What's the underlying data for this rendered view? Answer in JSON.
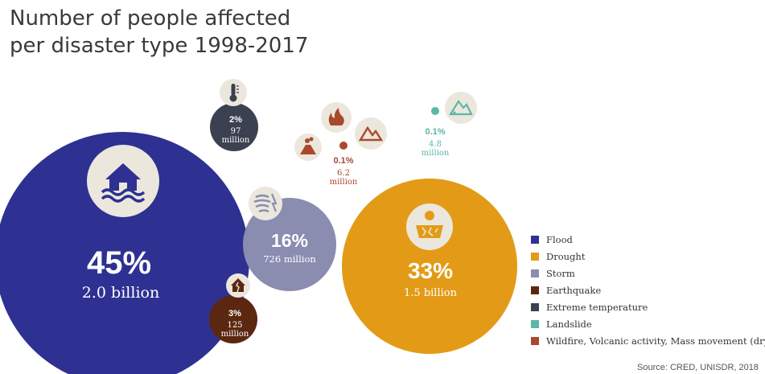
{
  "title_line1": "Number of people affected",
  "title_line2": "per disaster type 1998-2017",
  "source": "Source: CRED, UNISDR, 2018",
  "colors": {
    "flood": "#2e3192",
    "drought": "#e39b17",
    "storm": "#8a8cb0",
    "earthquake": "#5c2710",
    "extreme_temperature": "#3b4150",
    "landslide": "#5bb7a7",
    "wildfire_volcanic_mass": "#a9492b",
    "icon_bg": "#ece7dd"
  },
  "chart_data": {
    "type": "bubble",
    "title": "Number of people affected per disaster type 1998-2017",
    "items": [
      {
        "key": "flood",
        "name": "Flood",
        "percent": 45,
        "percent_label": "45%",
        "people_label": "2.0 billion",
        "people_billions": 2.0,
        "icon": "flood-house-icon"
      },
      {
        "key": "drought",
        "name": "Drought",
        "percent": 33,
        "percent_label": "33%",
        "people_label": "1.5 billion",
        "people_billions": 1.5,
        "icon": "drought-cracked-ground-icon"
      },
      {
        "key": "storm",
        "name": "Storm",
        "percent": 16,
        "percent_label": "16%",
        "people_label": "726 million",
        "people_billions": 0.726,
        "icon": "storm-wind-icon"
      },
      {
        "key": "earthquake",
        "name": "Earthquake",
        "percent": 3,
        "percent_label": "3%",
        "people_label_line1": "125",
        "people_label_line2": "million",
        "people_billions": 0.125,
        "icon": "earthquake-house-icon"
      },
      {
        "key": "extreme_temperature",
        "name": "Extreme temperature",
        "percent": 2,
        "percent_label": "2%",
        "people_label_line1": "97",
        "people_label_line2": "million",
        "people_billions": 0.097,
        "icon": "thermometer-icon"
      },
      {
        "key": "landslide",
        "name": "Landslide",
        "percent": 0.1,
        "percent_label": "0.1%",
        "people_label_line1": "4.8",
        "people_label_line2": "million",
        "people_billions": 0.0048,
        "icon": "landslide-mountain-icon"
      },
      {
        "key": "wildfire_volcanic_mass",
        "name": "Wildfire, Volcanic activity, Mass movement (dry)",
        "percent": 0.1,
        "percent_label": "0.1%",
        "people_label_line1": "6.2",
        "people_label_line2": "million",
        "people_billions": 0.0062,
        "icons": [
          "volcano-icon",
          "wildfire-icon",
          "mass-movement-icon"
        ]
      }
    ],
    "legend_placement": "bottom-right"
  }
}
